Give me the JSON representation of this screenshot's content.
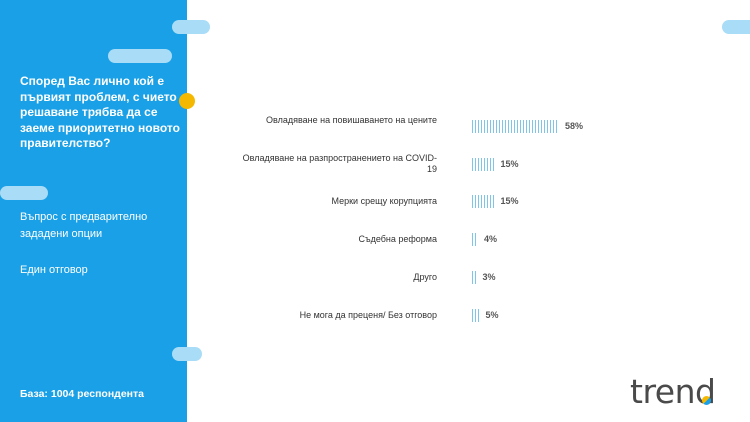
{
  "question": "Според Вас лично кой е първият проблем, с чието решаване трябва да се заеме приоритетно новото правителство?",
  "meta": [
    "Въпрос с предварително зададени опции",
    "Един отговор"
  ],
  "base": "База:  1004 респондента",
  "logo": "trend",
  "colors": {
    "sidebar": "#1aa0e6",
    "bar": "#7fc4ea",
    "accent": "#f5b800"
  },
  "chart_data": {
    "type": "bar",
    "orientation": "horizontal",
    "categories": [
      "Овладяване на повишаването на цените",
      "Овладяване на разпространението на COVID-19",
      "Мерки срещу корупцията",
      "Съдебна реформа",
      "Друго",
      "Не мога да преценя/ Без отговор"
    ],
    "values": [
      58,
      15,
      15,
      4,
      3,
      5
    ],
    "value_labels": [
      "58%",
      "15%",
      "15%",
      "4%",
      "3%",
      "5%"
    ],
    "unit": "%"
  }
}
